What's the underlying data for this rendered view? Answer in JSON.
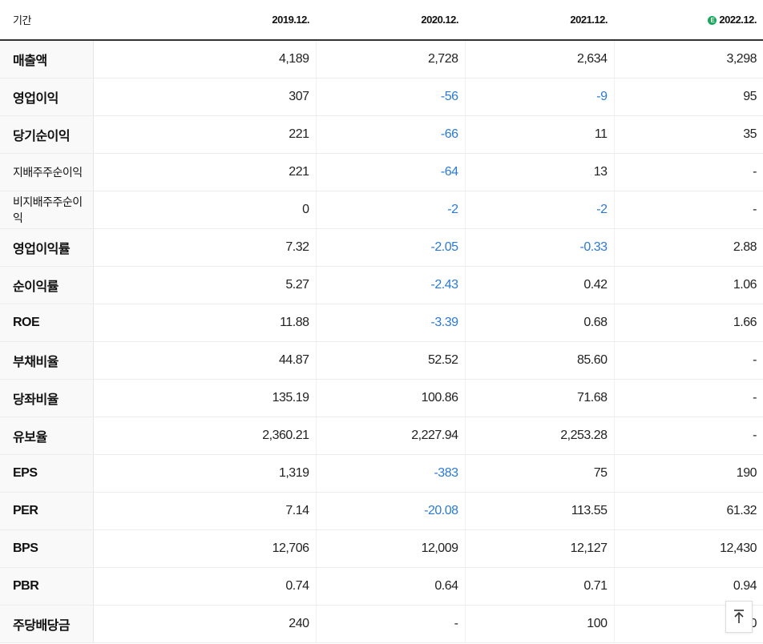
{
  "table": {
    "period_label": "기간",
    "columns": [
      "2019.12.",
      "2020.12.",
      "2021.12.",
      "2022.12."
    ],
    "estimate_badge": "E",
    "rows": [
      {
        "label": "매출액",
        "values": [
          "4,189",
          "2,728",
          "2,634",
          "3,298"
        ]
      },
      {
        "label": "영업이익",
        "values": [
          "307",
          "-56",
          "-9",
          "95"
        ]
      },
      {
        "label": "당기순이익",
        "values": [
          "221",
          "-66",
          "11",
          "35"
        ]
      },
      {
        "label": "지배주주순이익",
        "values": [
          "221",
          "-64",
          "13",
          "-"
        ]
      },
      {
        "label": "비지배주주순이익",
        "values": [
          "0",
          "-2",
          "-2",
          "-"
        ]
      },
      {
        "label": "영업이익률",
        "values": [
          "7.32",
          "-2.05",
          "-0.33",
          "2.88"
        ]
      },
      {
        "label": "순이익률",
        "values": [
          "5.27",
          "-2.43",
          "0.42",
          "1.06"
        ]
      },
      {
        "label": "ROE",
        "values": [
          "11.88",
          "-3.39",
          "0.68",
          "1.66"
        ]
      },
      {
        "label": "부채비율",
        "values": [
          "44.87",
          "52.52",
          "85.60",
          "-"
        ]
      },
      {
        "label": "당좌비율",
        "values": [
          "135.19",
          "100.86",
          "71.68",
          "-"
        ]
      },
      {
        "label": "유보율",
        "values": [
          "2,360.21",
          "2,227.94",
          "2,253.28",
          "-"
        ]
      },
      {
        "label": "EPS",
        "values": [
          "1,319",
          "-383",
          "75",
          "190"
        ]
      },
      {
        "label": "PER",
        "values": [
          "7.14",
          "-20.08",
          "113.55",
          "61.32"
        ]
      },
      {
        "label": "BPS",
        "values": [
          "12,706",
          "12,009",
          "12,127",
          "12,430"
        ]
      },
      {
        "label": "PBR",
        "values": [
          "0.74",
          "0.64",
          "0.71",
          "0.94"
        ]
      },
      {
        "label": "주당배당금",
        "values": [
          "240",
          "-",
          "100",
          "0"
        ]
      }
    ]
  },
  "colors": {
    "negative": "#2a7ad5",
    "estimate": "#17a85a"
  },
  "scroll_top_icon": "arrow-up-to-line-icon"
}
